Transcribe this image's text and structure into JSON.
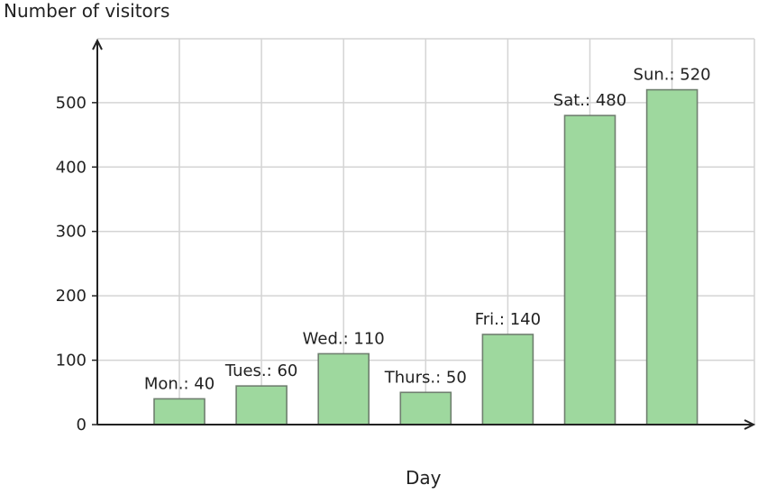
{
  "chart_data": {
    "type": "bar",
    "categories": [
      "Mon.",
      "Tues.",
      "Wed.",
      "Thurs.",
      "Fri.",
      "Sat.",
      "Sun."
    ],
    "values": [
      40,
      60,
      110,
      50,
      140,
      480,
      520
    ],
    "data_labels": [
      "Mon.: 40",
      "Tues.: 60",
      "Wed.: 110",
      "Thurs.: 50",
      "Fri.: 140",
      "Sat.: 480",
      "Sun.: 520"
    ],
    "xlabel": "Day",
    "ylabel": "Number of visitors",
    "ylim": [
      0,
      600
    ],
    "yticks": [
      0,
      100,
      200,
      300,
      400,
      500
    ],
    "grid": true,
    "bar_color": "#9ed89e",
    "bar_edge_color": "#6f7f6f",
    "grid_color": "#d4d4d4",
    "axis_color": "#222222"
  }
}
